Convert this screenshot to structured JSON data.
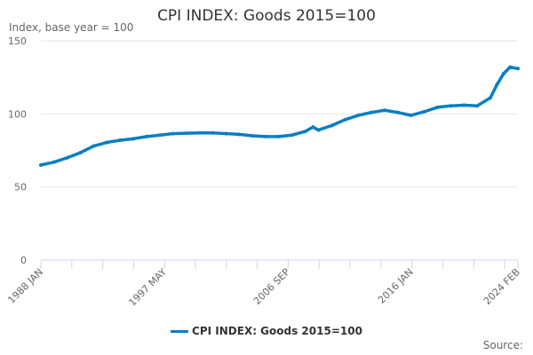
{
  "chart_data": {
    "type": "line",
    "title": "CPI INDEX: Goods 2015=100",
    "ylabel": "Index, base year = 100",
    "xlabel": "",
    "ylim": [
      0,
      150
    ],
    "yticks": [
      0,
      50,
      100,
      150
    ],
    "xlim": [
      "1988-01",
      "2024-02"
    ],
    "xtick_labels": [
      "1988 JAN",
      "1997 MAY",
      "2006 SEP",
      "2016 JAN",
      "2024 FEB"
    ],
    "grid": true,
    "legend": "bottom",
    "color": "#0a7ec2",
    "series": [
      {
        "name": "CPI INDEX: Goods 2015=100",
        "x": [
          "1988-01",
          "1989-01",
          "1990-01",
          "1991-01",
          "1992-01",
          "1993-01",
          "1994-01",
          "1995-01",
          "1996-01",
          "1997-01",
          "1998-01",
          "1999-01",
          "2000-01",
          "2001-01",
          "2002-01",
          "2003-01",
          "2004-01",
          "2005-01",
          "2006-01",
          "2007-01",
          "2008-01",
          "2008-08",
          "2009-01",
          "2010-01",
          "2011-01",
          "2012-01",
          "2013-01",
          "2014-01",
          "2015-01",
          "2016-01",
          "2017-01",
          "2018-01",
          "2019-01",
          "2020-01",
          "2021-01",
          "2022-01",
          "2022-07",
          "2023-01",
          "2023-07",
          "2024-02"
        ],
        "values": [
          65,
          67,
          70,
          73.5,
          78,
          80.5,
          82,
          83,
          84.5,
          85.5,
          86.5,
          86.8,
          87,
          87,
          86.5,
          86,
          85,
          84.5,
          84.5,
          85.5,
          88,
          91,
          89,
          92,
          96,
          99,
          101,
          102.5,
          101,
          99,
          101.5,
          104.5,
          105.5,
          106,
          105.5,
          111,
          120,
          127.5,
          132,
          131
        ]
      }
    ]
  },
  "source_label": "Source:"
}
